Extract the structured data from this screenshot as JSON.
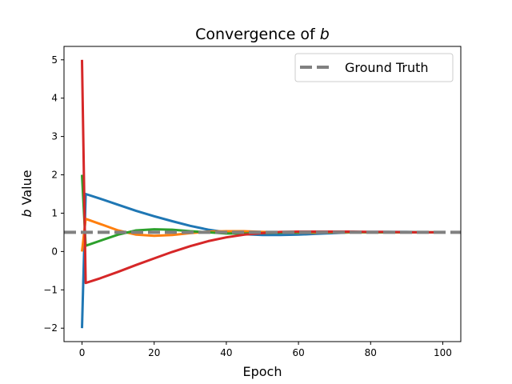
{
  "chart_data": {
    "type": "line",
    "title_prefix": "Convergence of ",
    "title_var": "b",
    "xlabel": "Epoch",
    "ylabel_var": "b",
    "ylabel_suffix": " Value",
    "xlim": [
      -5,
      105
    ],
    "ylim": [
      -2.35,
      5.35
    ],
    "xticks": [
      0,
      20,
      40,
      60,
      80,
      100
    ],
    "yticks": [
      -2,
      -1,
      0,
      1,
      2,
      3,
      4,
      5
    ],
    "xtick_labels": [
      "0",
      "20",
      "40",
      "60",
      "80",
      "100"
    ],
    "ytick_labels": [
      "−2",
      "−1",
      "0",
      "1",
      "2",
      "3",
      "4",
      "5"
    ],
    "ground_truth": {
      "label": "Ground Truth",
      "value": 0.5,
      "color": "#808080"
    },
    "legend_position": "upper right",
    "grid": false,
    "series": [
      {
        "color": "#1f77b4",
        "x": [
          0,
          1,
          5,
          10,
          15,
          20,
          25,
          30,
          35,
          40,
          45,
          50,
          55,
          60,
          65,
          70,
          75,
          80,
          85,
          90,
          95,
          100
        ],
        "values": [
          -2.0,
          1.5,
          1.38,
          1.22,
          1.06,
          0.92,
          0.79,
          0.67,
          0.57,
          0.5,
          0.45,
          0.43,
          0.43,
          0.44,
          0.46,
          0.48,
          0.5,
          0.51,
          0.51,
          0.51,
          0.5,
          0.5
        ]
      },
      {
        "color": "#ff7f0e",
        "x": [
          0,
          1,
          5,
          10,
          15,
          20,
          25,
          30,
          35,
          40,
          45,
          50,
          55,
          60,
          65,
          70,
          75,
          80,
          85,
          90,
          95,
          100
        ],
        "values": [
          0.0,
          0.85,
          0.72,
          0.55,
          0.44,
          0.41,
          0.43,
          0.48,
          0.52,
          0.53,
          0.53,
          0.51,
          0.5,
          0.49,
          0.49,
          0.5,
          0.5,
          0.5,
          0.5,
          0.5,
          0.5,
          0.5
        ]
      },
      {
        "color": "#2ca02c",
        "x": [
          0,
          1,
          5,
          10,
          15,
          20,
          25,
          30,
          35,
          40,
          45,
          50,
          55,
          60,
          65,
          70,
          75,
          80,
          85,
          90,
          95,
          100
        ],
        "values": [
          2.0,
          0.15,
          0.28,
          0.44,
          0.55,
          0.58,
          0.57,
          0.53,
          0.5,
          0.47,
          0.47,
          0.48,
          0.49,
          0.5,
          0.51,
          0.51,
          0.51,
          0.5,
          0.5,
          0.5,
          0.5,
          0.5
        ]
      },
      {
        "color": "#d62728",
        "x": [
          0,
          1,
          5,
          10,
          15,
          20,
          25,
          30,
          35,
          40,
          45,
          50,
          55,
          60,
          65,
          70,
          75,
          80,
          85,
          90,
          95,
          100
        ],
        "values": [
          5.0,
          -0.82,
          -0.7,
          -0.53,
          -0.35,
          -0.18,
          -0.01,
          0.14,
          0.27,
          0.37,
          0.44,
          0.48,
          0.51,
          0.52,
          0.52,
          0.52,
          0.52,
          0.51,
          0.51,
          0.5,
          0.5,
          0.5
        ]
      }
    ]
  }
}
